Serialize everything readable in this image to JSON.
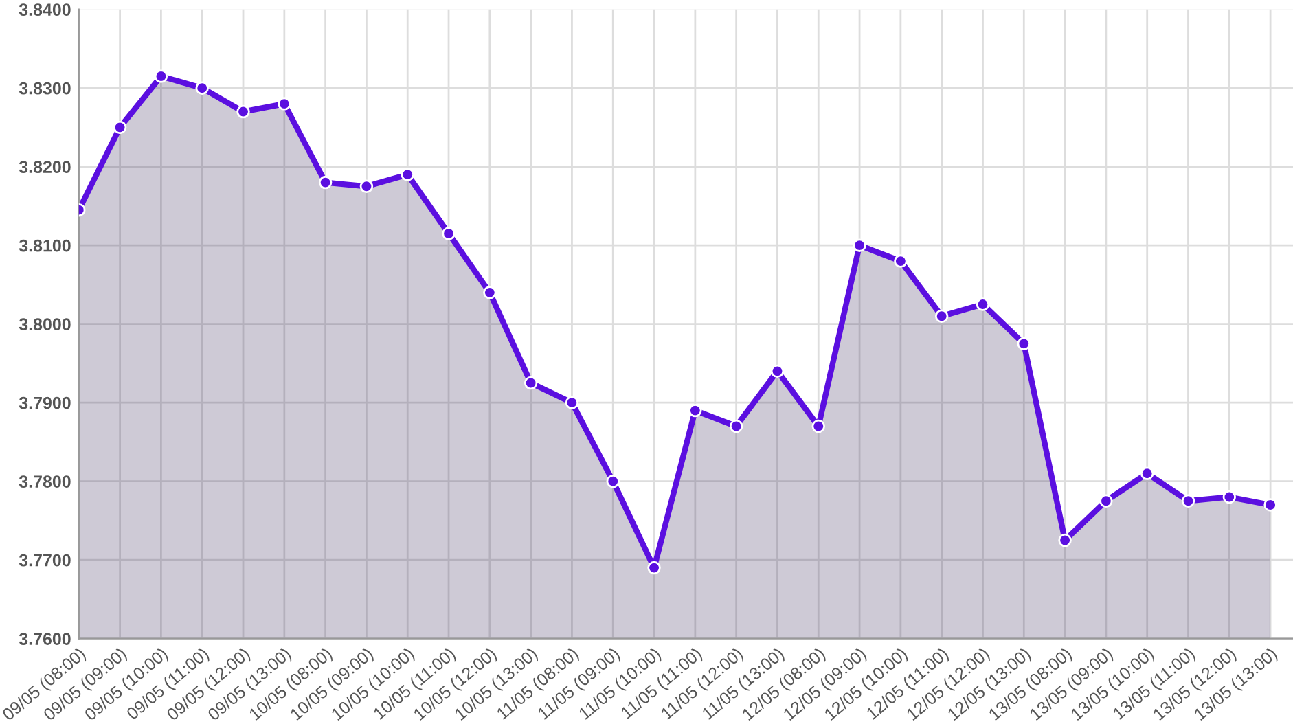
{
  "chart_data": {
    "type": "area",
    "categories": [
      "09/05 (08:00)",
      "09/05 (09:00)",
      "09/05 (10:00)",
      "09/05 (11:00)",
      "09/05 (12:00)",
      "09/05 (13:00)",
      "10/05 (08:00)",
      "10/05 (09:00)",
      "10/05 (10:00)",
      "10/05 (11:00)",
      "10/05 (12:00)",
      "10/05 (13:00)",
      "11/05 (08:00)",
      "11/05 (09:00)",
      "11/05 (10:00)",
      "11/05 (11:00)",
      "11/05 (12:00)",
      "11/05 (13:00)",
      "12/05 (08:00)",
      "12/05 (09:00)",
      "12/05 (10:00)",
      "12/05 (11:00)",
      "12/05 (12:00)",
      "12/05 (13:00)",
      "13/05 (08:00)",
      "13/05 (09:00)",
      "13/05 (10:00)",
      "13/05 (11:00)",
      "13/05 (12:00)",
      "13/05 (13:00)"
    ],
    "series": [
      {
        "color": "#5b0fe0",
        "values": [
          3.8145,
          3.825,
          3.8315,
          3.83,
          3.827,
          3.828,
          3.818,
          3.8175,
          3.819,
          3.8115,
          3.804,
          3.7925,
          3.79,
          3.78,
          3.769,
          3.789,
          3.787,
          3.794,
          3.787,
          3.81,
          3.808,
          3.801,
          3.8025,
          3.7975,
          3.7725,
          3.7775,
          3.781,
          3.7775,
          3.778,
          3.777
        ]
      }
    ],
    "ylim": [
      3.76,
      3.84
    ],
    "yticks": [
      {
        "value": 3.76,
        "label": "3.7600"
      },
      {
        "value": 3.77,
        "label": "3.7700"
      },
      {
        "value": 3.78,
        "label": "3.7800"
      },
      {
        "value": 3.79,
        "label": "3.7900"
      },
      {
        "value": 3.8,
        "label": "3.8000"
      },
      {
        "value": 3.81,
        "label": "3.8100"
      },
      {
        "value": 3.82,
        "label": "3.8200"
      },
      {
        "value": 3.83,
        "label": "3.8300"
      },
      {
        "value": 3.84,
        "label": "3.8400"
      }
    ],
    "grid": true,
    "marker": "circle"
  }
}
